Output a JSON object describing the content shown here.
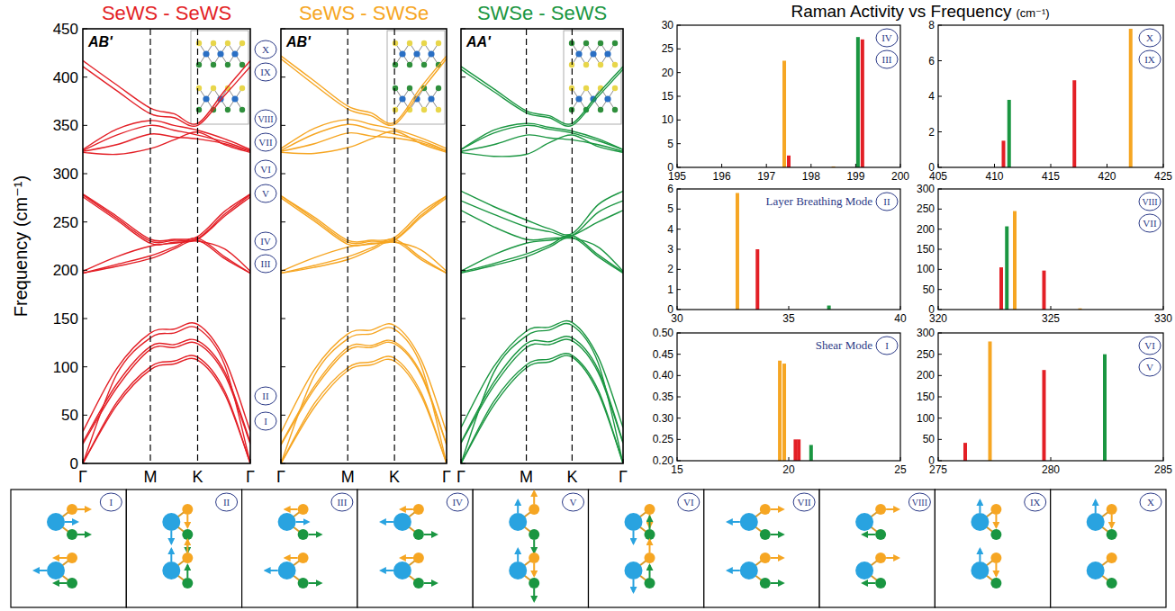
{
  "chart_data": [
    {
      "type": "line",
      "title": "SeWS - SeWS",
      "annotation": "AB'",
      "color": "#e31f26",
      "y_label": "Frequency (cm⁻¹)",
      "x": [
        0,
        0.5,
        1,
        1.35,
        1.7,
        2.1,
        2.48
      ],
      "xlim": [
        0,
        2.48
      ],
      "xticks": [
        {
          "value": 0,
          "label": "Γ"
        },
        {
          "value": 1,
          "label": "M"
        },
        {
          "value": 1.7,
          "label": "K"
        },
        {
          "value": 2.48,
          "label": "Γ"
        }
      ],
      "ylim": [
        0,
        450
      ],
      "yticks": [
        0,
        50,
        100,
        150,
        200,
        250,
        300,
        350,
        400,
        450
      ],
      "series": [
        {
          "values": [
            0,
            60,
            97,
            103,
            107,
            72,
            0
          ]
        },
        {
          "values": [
            0,
            63,
            100,
            106,
            110,
            75,
            0
          ]
        },
        {
          "values": [
            20,
            78,
            118,
            120,
            124,
            92,
            20
          ]
        },
        {
          "values": [
            22,
            82,
            121,
            123,
            127,
            95,
            22
          ]
        },
        {
          "values": [
            0,
            92,
            130,
            135,
            140,
            102,
            0
          ]
        },
        {
          "values": [
            33,
            98,
            135,
            139,
            144,
            108,
            33
          ]
        },
        {
          "values": [
            197,
            204,
            212,
            222,
            231,
            212,
            197
          ]
        },
        {
          "values": [
            197,
            206,
            215,
            224,
            233,
            214,
            197
          ]
        },
        {
          "values": [
            199,
            214,
            225,
            228,
            230,
            222,
            199
          ]
        },
        {
          "values": [
            276,
            252,
            228,
            229,
            232,
            256,
            276
          ]
        },
        {
          "values": [
            278,
            254,
            230,
            231,
            233,
            258,
            278
          ]
        },
        {
          "values": [
            279,
            256,
            232,
            232,
            235,
            261,
            279
          ]
        },
        {
          "values": [
            322,
            320,
            326,
            335,
            343,
            330,
            322
          ]
        },
        {
          "values": [
            323,
            330,
            341,
            338,
            336,
            331,
            323
          ]
        },
        {
          "values": [
            324,
            340,
            350,
            345,
            340,
            333,
            324
          ]
        },
        {
          "values": [
            325,
            346,
            355,
            350,
            345,
            336,
            325
          ]
        },
        {
          "values": [
            411,
            386,
            362,
            358,
            350,
            381,
            411
          ]
        },
        {
          "values": [
            417,
            392,
            368,
            362,
            352,
            386,
            417
          ]
        }
      ]
    },
    {
      "type": "line",
      "title": "SeWS - SWSe",
      "annotation": "AB'",
      "color": "#f6a623",
      "tick_labels": "x",
      "x": [
        0,
        0.5,
        1,
        1.35,
        1.7,
        2.1,
        2.48
      ],
      "xlim": [
        0,
        2.48
      ],
      "xticks": [
        {
          "value": 0,
          "label": "Γ"
        },
        {
          "value": 1,
          "label": "M"
        },
        {
          "value": 1.7,
          "label": "K"
        },
        {
          "value": 2.48,
          "label": "Γ"
        }
      ],
      "ylim": [
        0,
        450
      ],
      "yticks": [
        0,
        50,
        100,
        150,
        200,
        250,
        300,
        350,
        400,
        450
      ],
      "series": [
        {
          "values": [
            0,
            58,
            96,
            102,
            106,
            70,
            0
          ]
        },
        {
          "values": [
            0,
            62,
            99,
            105,
            109,
            73,
            0
          ]
        },
        {
          "values": [
            19,
            77,
            117,
            120,
            124,
            91,
            19
          ]
        },
        {
          "values": [
            20,
            80,
            120,
            122,
            126,
            93,
            20
          ]
        },
        {
          "values": [
            0,
            91,
            129,
            134,
            139,
            101,
            0
          ]
        },
        {
          "values": [
            32,
            97,
            134,
            138,
            143,
            107,
            32
          ]
        },
        {
          "values": [
            197,
            203,
            211,
            221,
            230,
            211,
            197
          ]
        },
        {
          "values": [
            197,
            205,
            214,
            223,
            232,
            213,
            197
          ]
        },
        {
          "values": [
            199,
            213,
            224,
            227,
            229,
            221,
            199
          ]
        },
        {
          "values": [
            275,
            251,
            227,
            228,
            231,
            255,
            275
          ]
        },
        {
          "values": [
            277,
            253,
            229,
            230,
            232,
            257,
            277
          ]
        },
        {
          "values": [
            277,
            255,
            231,
            231,
            234,
            260,
            277
          ]
        },
        {
          "values": [
            322,
            321,
            327,
            336,
            344,
            331,
            322
          ]
        },
        {
          "values": [
            323,
            331,
            342,
            339,
            337,
            332,
            323
          ]
        },
        {
          "values": [
            324,
            341,
            351,
            346,
            341,
            334,
            324
          ]
        },
        {
          "values": [
            326,
            347,
            356,
            351,
            346,
            337,
            326
          ]
        },
        {
          "values": [
            419,
            392,
            367,
            360,
            351,
            386,
            419
          ]
        },
        {
          "values": [
            422,
            396,
            370,
            363,
            353,
            390,
            422
          ]
        }
      ]
    },
    {
      "type": "line",
      "title": "SWSe - SeWS",
      "annotation": "AA'",
      "color": "#1a9641",
      "tick_labels": "x",
      "x": [
        0,
        0.5,
        1,
        1.35,
        1.7,
        2.1,
        2.48
      ],
      "xlim": [
        0,
        2.48
      ],
      "xticks": [
        {
          "value": 0,
          "label": "Γ"
        },
        {
          "value": 1,
          "label": "M"
        },
        {
          "value": 1.7,
          "label": "K"
        },
        {
          "value": 2.48,
          "label": "Γ"
        }
      ],
      "ylim": [
        0,
        450
      ],
      "yticks": [
        0,
        50,
        100,
        150,
        200,
        250,
        300,
        350,
        400,
        450
      ],
      "series": [
        {
          "values": [
            0,
            60,
            99,
            105,
            110,
            73,
            0
          ]
        },
        {
          "values": [
            0,
            64,
            102,
            108,
            112,
            76,
            0
          ]
        },
        {
          "values": [
            21,
            80,
            120,
            123,
            127,
            94,
            21
          ]
        },
        {
          "values": [
            22,
            84,
            124,
            126,
            130,
            97,
            22
          ]
        },
        {
          "values": [
            0,
            94,
            132,
            138,
            143,
            104,
            0
          ]
        },
        {
          "values": [
            37,
            100,
            137,
            141,
            146,
            110,
            37
          ]
        },
        {
          "values": [
            197,
            205,
            214,
            224,
            234,
            214,
            197
          ]
        },
        {
          "values": [
            198,
            207,
            217,
            226,
            236,
            216,
            198
          ]
        },
        {
          "values": [
            199,
            216,
            228,
            231,
            233,
            224,
            199
          ]
        },
        {
          "values": [
            262,
            245,
            232,
            233,
            236,
            250,
            262
          ]
        },
        {
          "values": [
            272,
            258,
            245,
            240,
            236,
            260,
            272
          ]
        },
        {
          "values": [
            282,
            266,
            252,
            243,
            238,
            268,
            282
          ]
        },
        {
          "values": [
            322,
            318,
            320,
            332,
            340,
            328,
            322
          ]
        },
        {
          "values": [
            323,
            330,
            340,
            337,
            335,
            330,
            323
          ]
        },
        {
          "values": [
            325,
            342,
            350,
            346,
            342,
            334,
            325
          ]
        },
        {
          "values": [
            325,
            345,
            352,
            348,
            344,
            336,
            325
          ]
        },
        {
          "values": [
            408,
            385,
            363,
            358,
            350,
            380,
            408
          ]
        },
        {
          "values": [
            411,
            388,
            365,
            360,
            352,
            383,
            411
          ]
        }
      ]
    },
    {
      "type": "bar",
      "xlim": [
        195,
        200
      ],
      "xticks": [
        195,
        196,
        197,
        198,
        199,
        200
      ],
      "ylim": [
        0,
        30
      ],
      "yticks": [
        0,
        5,
        10,
        15,
        20,
        25,
        30
      ],
      "x": [
        197.4,
        197.5,
        198.5,
        199.05,
        199.15
      ],
      "values": [
        22.5,
        2.5,
        0.2,
        27.5,
        27
      ],
      "colors": [
        "#f6a623",
        "#e31f26",
        "#f6a623",
        "#1a9641",
        "#e31f26"
      ],
      "mode_labels": [
        "IV",
        "III"
      ]
    },
    {
      "type": "bar",
      "xlim": [
        405,
        425
      ],
      "xticks": [
        405,
        410,
        415,
        420,
        425
      ],
      "ylim": [
        0,
        8
      ],
      "yticks": [
        0,
        2,
        4,
        6,
        8
      ],
      "x": [
        410.8,
        411.3,
        417.1,
        422.1
      ],
      "values": [
        1.5,
        3.8,
        4.9,
        7.8
      ],
      "colors": [
        "#e31f26",
        "#1a9641",
        "#e31f26",
        "#f6a623"
      ],
      "mode_labels": [
        "X",
        "IX"
      ]
    },
    {
      "type": "bar",
      "xlim": [
        30,
        40
      ],
      "xticks": [
        30,
        35,
        40
      ],
      "ylim": [
        0,
        6
      ],
      "yticks": [
        0,
        1,
        2,
        3,
        4,
        5,
        6
      ],
      "x": [
        32.7,
        33.6,
        36.8
      ],
      "values": [
        5.8,
        3,
        0.2
      ],
      "colors": [
        "#f6a623",
        "#e31f26",
        "#1a9641"
      ],
      "mode_labels": [
        "II"
      ],
      "note": "Layer Breathing Mode"
    },
    {
      "type": "bar",
      "xlim": [
        320,
        330
      ],
      "xticks": [
        320,
        325,
        330
      ],
      "ylim": [
        0,
        300
      ],
      "yticks": [
        0,
        50,
        100,
        150,
        200,
        250,
        300
      ],
      "x": [
        322.8,
        323.05,
        323.4,
        324.7,
        326.3
      ],
      "values": [
        105,
        207,
        245,
        97,
        3
      ],
      "colors": [
        "#e31f26",
        "#1a9641",
        "#f6a623",
        "#e31f26",
        "#f6a623"
      ],
      "mode_labels": [
        "VIII",
        "VII"
      ]
    },
    {
      "type": "bar",
      "xlim": [
        15,
        25
      ],
      "xticks": [
        15,
        20,
        25
      ],
      "ylim": [
        0.2,
        0.5
      ],
      "yticks": [
        {
          "value": 0.2,
          "label": "0.20"
        },
        0.25,
        {
          "value": 0.3,
          "label": "0.30"
        },
        0.35,
        {
          "value": 0.4,
          "label": "0.40"
        },
        0.45,
        {
          "value": 0.5,
          "label": "0.50"
        }
      ],
      "x": [
        19.6,
        19.8,
        20.3,
        20.45,
        21.0
      ],
      "values": [
        0.435,
        0.428,
        0.25,
        0.25,
        0.237
      ],
      "colors": [
        "#f6a623",
        "#f6a623",
        "#e31f26",
        "#e31f26",
        "#1a9641"
      ],
      "mode_labels": [
        "I"
      ],
      "note": "Shear Mode"
    },
    {
      "type": "bar",
      "xlim": [
        275,
        285
      ],
      "xticks": [
        275,
        280,
        285
      ],
      "ylim": [
        0,
        300
      ],
      "yticks": [
        0,
        50,
        100,
        150,
        200,
        250,
        300
      ],
      "x": [
        276.2,
        277.3,
        279.7,
        282.4
      ],
      "values": [
        42,
        280,
        213,
        250
      ],
      "colors": [
        "#e31f26",
        "#f6a623",
        "#e31f26",
        "#1a9641"
      ],
      "mode_labels": [
        "VI",
        "V"
      ]
    }
  ],
  "figure": {
    "raman_heading": "Raman Activity vs Frequency",
    "raman_heading_unit": "(cm⁻¹)",
    "mode_column": [
      "X",
      "IX",
      "VIII",
      "VII",
      "VI",
      "V",
      "IV",
      "III",
      "II",
      "I"
    ],
    "mode_diagrams": [
      "I",
      "II",
      "III",
      "IV",
      "V",
      "VI",
      "VII",
      "VIII",
      "IX",
      "X"
    ]
  }
}
